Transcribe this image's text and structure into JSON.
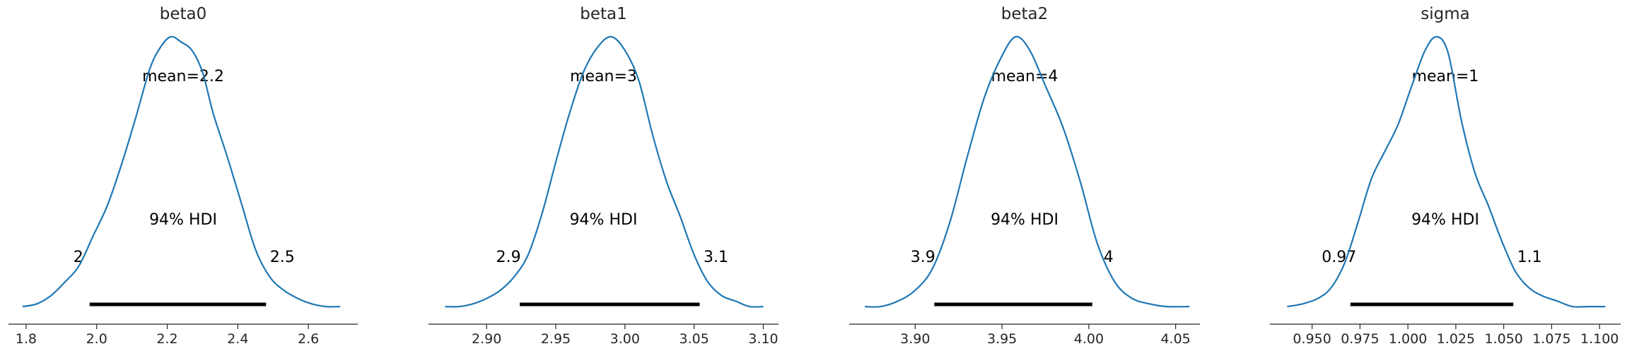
{
  "chart_data": [
    {
      "type": "area",
      "title": "beta0",
      "mean_label": "mean=2.2",
      "hdi_label": "94% HDI",
      "hdi": [
        1.98,
        2.48
      ],
      "hdi_labels": [
        "2",
        "2.5"
      ],
      "xlim": [
        1.75,
        2.74
      ],
      "xticks": [
        1.8,
        2.0,
        2.2,
        2.4,
        2.6
      ],
      "xtick_labels": [
        "1.8",
        "2.0",
        "2.2",
        "2.4",
        "2.6"
      ],
      "color": "#1f77b4",
      "x": [
        1.79,
        1.83,
        1.87,
        1.91,
        1.95,
        1.99,
        2.03,
        2.07,
        2.11,
        2.15,
        2.18,
        2.21,
        2.24,
        2.27,
        2.3,
        2.33,
        2.37,
        2.41,
        2.45,
        2.49,
        2.53,
        2.57,
        2.61,
        2.65,
        2.69
      ],
      "y": [
        0.01,
        0.02,
        0.05,
        0.1,
        0.16,
        0.27,
        0.38,
        0.53,
        0.7,
        0.88,
        0.96,
        1.0,
        0.98,
        0.95,
        0.87,
        0.72,
        0.56,
        0.39,
        0.22,
        0.12,
        0.07,
        0.04,
        0.02,
        0.01,
        0.01
      ]
    },
    {
      "type": "area",
      "title": "beta1",
      "mean_label": "mean=3",
      "hdi_label": "94% HDI",
      "hdi": [
        2.924,
        3.054
      ],
      "hdi_labels": [
        "2.9",
        "3.1"
      ],
      "xlim": [
        2.858,
        3.111
      ],
      "xticks": [
        2.9,
        2.95,
        3.0,
        3.05,
        3.1
      ],
      "xtick_labels": [
        "2.90",
        "2.95",
        "3.00",
        "3.05",
        "3.10"
      ],
      "color": "#1f77b4",
      "x": [
        2.87,
        2.88,
        2.89,
        2.9,
        2.91,
        2.92,
        2.93,
        2.94,
        2.95,
        2.96,
        2.97,
        2.98,
        2.99,
        3.0,
        3.01,
        3.02,
        3.03,
        3.04,
        3.05,
        3.06,
        3.07,
        3.08,
        3.09,
        3.1
      ],
      "y": [
        0.01,
        0.01,
        0.02,
        0.04,
        0.07,
        0.12,
        0.2,
        0.35,
        0.54,
        0.72,
        0.87,
        0.96,
        1.0,
        0.95,
        0.84,
        0.64,
        0.47,
        0.34,
        0.2,
        0.1,
        0.05,
        0.03,
        0.01,
        0.01
      ]
    },
    {
      "type": "area",
      "title": "beta2",
      "mean_label": "mean=4",
      "hdi_label": "94% HDI",
      "hdi": [
        3.911,
        4.002
      ],
      "hdi_labels": [
        "3.9",
        "4"
      ],
      "xlim": [
        3.862,
        4.064
      ],
      "xticks": [
        3.9,
        3.95,
        4.0,
        4.05
      ],
      "xtick_labels": [
        "3.90",
        "3.95",
        "4.00",
        "4.05"
      ],
      "color": "#1f77b4",
      "x": [
        3.871,
        3.88,
        3.89,
        3.9,
        3.91,
        3.92,
        3.93,
        3.94,
        3.95,
        3.958,
        3.966,
        3.975,
        3.985,
        3.995,
        4.005,
        4.015,
        4.025,
        4.035,
        4.045,
        4.058
      ],
      "y": [
        0.01,
        0.01,
        0.03,
        0.07,
        0.15,
        0.32,
        0.56,
        0.78,
        0.93,
        1.0,
        0.95,
        0.82,
        0.67,
        0.47,
        0.24,
        0.1,
        0.04,
        0.02,
        0.01,
        0.01
      ]
    },
    {
      "type": "area",
      "title": "sigma",
      "mean_label": "mean=1",
      "hdi_label": "94% HDI",
      "hdi": [
        0.97,
        1.055
      ],
      "hdi_labels": [
        "0.97",
        "1.1"
      ],
      "xlim": [
        0.928,
        1.111
      ],
      "xticks": [
        0.95,
        0.975,
        1.0,
        1.025,
        1.05,
        1.075,
        1.1
      ],
      "xtick_labels": [
        "0.950",
        "0.975",
        "1.000",
        "1.025",
        "1.050",
        "1.075",
        "1.100"
      ],
      "color": "#1f77b4",
      "x": [
        0.937,
        0.945,
        0.953,
        0.96,
        0.967,
        0.974,
        0.981,
        0.988,
        0.995,
        1.002,
        1.009,
        1.015,
        1.021,
        1.028,
        1.035,
        1.042,
        1.049,
        1.056,
        1.063,
        1.07,
        1.078,
        1.086,
        1.094,
        1.103
      ],
      "y": [
        0.01,
        0.02,
        0.04,
        0.08,
        0.17,
        0.32,
        0.48,
        0.58,
        0.68,
        0.82,
        0.95,
        1.0,
        0.94,
        0.69,
        0.5,
        0.38,
        0.25,
        0.14,
        0.08,
        0.05,
        0.03,
        0.01,
        0.01,
        0.01
      ]
    }
  ]
}
